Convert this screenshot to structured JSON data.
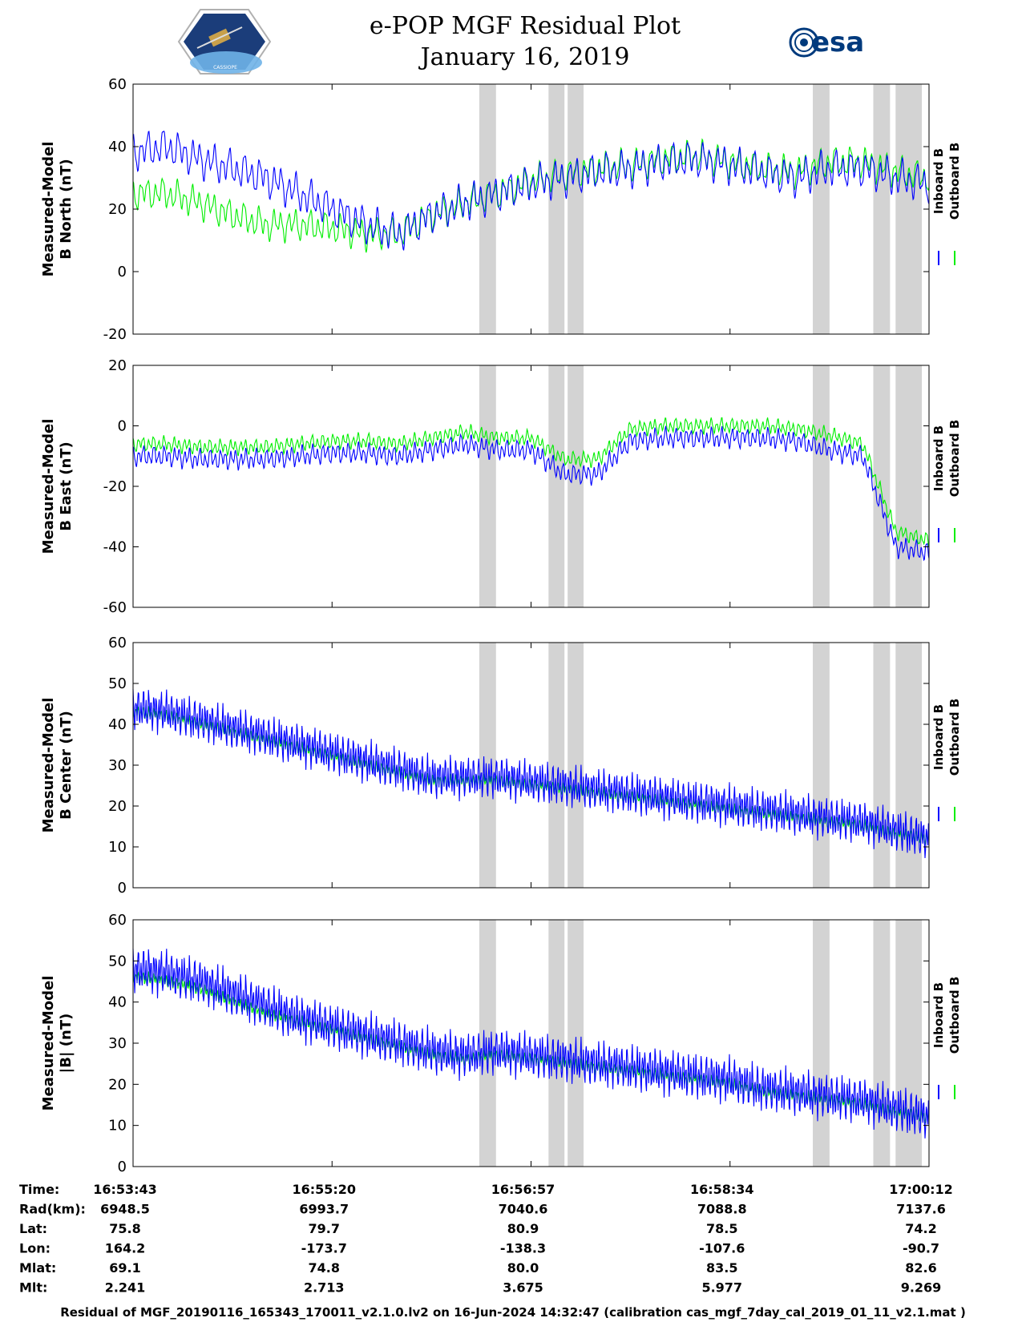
{
  "title": "e-POP MGF Residual Plot",
  "date": "January 16, 2019",
  "logos": {
    "left": {
      "text": "CASSIOPE",
      "color_bg": "#1b3d7a"
    },
    "right": {
      "text": "esa",
      "color": "#003a7d"
    }
  },
  "colors": {
    "inboard": "#0000ff",
    "outboard": "#00ee00",
    "shade": "#d3d3d3"
  },
  "chart_data": [
    {
      "type": "line",
      "ylabel": [
        "Measured-Model",
        "B North (nT)"
      ],
      "ylim": [
        -20,
        60
      ],
      "yticks": [
        -20,
        0,
        20,
        40,
        60
      ],
      "legend": [
        "Inboard B",
        "Outboard B"
      ],
      "series": [
        {
          "name": "Inboard B",
          "base": [
            38,
            40,
            36,
            33,
            30,
            25,
            20,
            15,
            12,
            18,
            22,
            25,
            28,
            30,
            32,
            33,
            35,
            36,
            34,
            32,
            30,
            33,
            33,
            30,
            28
          ],
          "amp": 7,
          "period": 1.3
        },
        {
          "name": "Outboard B",
          "base": [
            25,
            25,
            22,
            18,
            15,
            15,
            14,
            12,
            12,
            18,
            22,
            25,
            29,
            31,
            33,
            34,
            36,
            37,
            35,
            33,
            32,
            35,
            35,
            32,
            30
          ],
          "amp": 6,
          "period": 1.3
        }
      ]
    },
    {
      "type": "line",
      "ylabel": [
        "Measured-Model",
        "B East (nT)"
      ],
      "ylim": [
        -60,
        20
      ],
      "yticks": [
        -60,
        -40,
        -20,
        0,
        20
      ],
      "legend": [
        "Inboard B",
        "Outboard B"
      ],
      "series": [
        {
          "name": "Inboard B",
          "base": [
            -10,
            -10,
            -11,
            -11,
            -11,
            -10,
            -9,
            -9,
            -10,
            -8,
            -6,
            -8,
            -8,
            -16,
            -16,
            -5,
            -4,
            -4,
            -4,
            -4,
            -5,
            -8,
            -10,
            -40,
            -42
          ],
          "amp": 4,
          "period": 0.9
        },
        {
          "name": "Outboard B",
          "base": [
            -6,
            -6,
            -7,
            -7,
            -7,
            -6,
            -5,
            -5,
            -6,
            -4,
            -2,
            -4,
            -4,
            -11,
            -11,
            -1,
            0,
            0,
            0,
            0,
            -1,
            -3,
            -6,
            -35,
            -38
          ],
          "amp": 3,
          "period": 0.9
        }
      ]
    },
    {
      "type": "line",
      "ylabel": [
        "Measured-Model",
        "B Center (nT)"
      ],
      "ylim": [
        0,
        60
      ],
      "yticks": [
        0,
        10,
        20,
        30,
        40,
        50,
        60
      ],
      "legend": [
        "Inboard B",
        "Outboard B"
      ],
      "series": [
        {
          "name": "Inboard B",
          "base": [
            44,
            43,
            41,
            39,
            37,
            35,
            33,
            31,
            29,
            27,
            27,
            27,
            26,
            25,
            24,
            23,
            22,
            21,
            20,
            19,
            18,
            17,
            16,
            14,
            12
          ],
          "amp": 6,
          "period": 0.45
        },
        {
          "name": "Outboard B",
          "base": [
            43,
            42,
            40,
            38,
            36,
            34,
            32,
            30,
            28,
            26,
            26,
            26,
            25,
            24,
            23,
            22,
            21,
            20,
            19,
            18,
            17,
            16,
            15,
            13,
            12
          ],
          "amp": 2,
          "period": 0.45
        }
      ]
    },
    {
      "type": "line",
      "ylabel": [
        "Measured-Model",
        "|B| (nT)"
      ],
      "ylim": [
        0,
        60
      ],
      "yticks": [
        0,
        10,
        20,
        30,
        40,
        50,
        60
      ],
      "legend": [
        "Inboard B",
        "Outboard B"
      ],
      "series": [
        {
          "name": "Inboard B",
          "base": [
            48,
            47,
            45,
            42,
            39,
            36,
            34,
            32,
            30,
            28,
            27,
            28,
            27,
            26,
            25,
            24,
            23,
            22,
            21,
            19,
            18,
            17,
            16,
            14,
            12
          ],
          "amp": 6.5,
          "period": 0.45
        },
        {
          "name": "Outboard B",
          "base": [
            46,
            45,
            43,
            40,
            37,
            35,
            33,
            31,
            29,
            27,
            26,
            27,
            26,
            25,
            24,
            23,
            22,
            21,
            20,
            18,
            17,
            16,
            15,
            13,
            12
          ],
          "amp": 2,
          "period": 0.45
        }
      ]
    }
  ],
  "shaded_intervals": [
    [
      0.435,
      0.456
    ],
    [
      0.522,
      0.542
    ],
    [
      0.546,
      0.566
    ],
    [
      0.854,
      0.875
    ],
    [
      0.93,
      0.951
    ],
    [
      0.958,
      0.991
    ]
  ],
  "xticks": [
    0,
    0.25,
    0.5,
    0.75,
    1.0
  ],
  "table": {
    "rows": [
      {
        "label": "Time:",
        "values": [
          "16:53:43",
          "16:55:20",
          "16:56:57",
          "16:58:34",
          "17:00:12"
        ]
      },
      {
        "label": "Rad(km):",
        "values": [
          "6948.5",
          "6993.7",
          "7040.6",
          "7088.8",
          "7137.6"
        ]
      },
      {
        "label": "Lat:",
        "values": [
          "75.8",
          "79.7",
          "80.9",
          "78.5",
          "74.2"
        ]
      },
      {
        "label": "Lon:",
        "values": [
          "164.2",
          "-173.7",
          "-138.3",
          "-107.6",
          "-90.7"
        ]
      },
      {
        "label": "Mlat:",
        "values": [
          "69.1",
          "74.8",
          "80.0",
          "83.5",
          "82.6"
        ]
      },
      {
        "label": "Mlt:",
        "values": [
          "2.241",
          "2.713",
          "3.675",
          "5.977",
          "9.269"
        ]
      }
    ]
  },
  "footer": "Residual of MGF_20190116_165343_170011_v2.1.0.lv2 on 16-Jun-2024 14:32:47 (calibration cas_mgf_7day_cal_2019_01_11_v2.1.mat )"
}
